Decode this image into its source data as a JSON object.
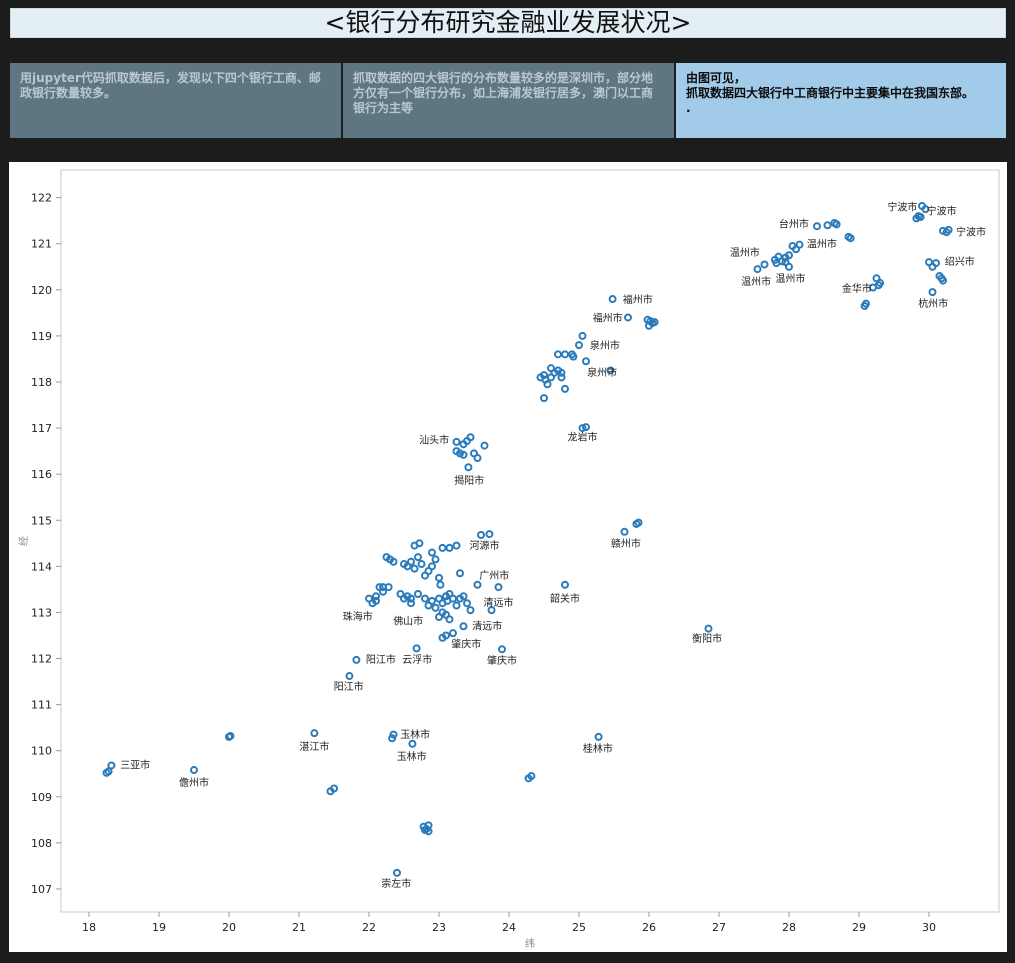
{
  "page": {
    "title": "<银行分布研究金融业发展状况>",
    "panels": [
      "用jupyter代码抓取数据后，发现以下四个银行工商、邮政银行数量较多。",
      "抓取数据的四大银行的分布数量较多的是深圳市，部分地方仅有一个银行分布，如上海浦发银行居多，澳门以工商银行为主等",
      "由图可见，\n抓取数据四大银行中工商银行中主要集中在我国东部。\n."
    ]
  },
  "colors": {
    "point": "#2b7bba",
    "background": "#1c1c1c",
    "panel_dark": "#5e7582",
    "panel_light": "#a2cbe9"
  },
  "chart_data": {
    "type": "scatter",
    "xlabel": "纬",
    "ylabel": "经",
    "xlim": [
      17.6,
      31.0
    ],
    "ylim": [
      106.5,
      122.6
    ],
    "xticks": [
      18,
      19,
      20,
      21,
      22,
      23,
      24,
      25,
      26,
      27,
      28,
      29,
      30
    ],
    "yticks": [
      107,
      108,
      109,
      110,
      111,
      112,
      113,
      114,
      115,
      116,
      117,
      118,
      119,
      120,
      121,
      122
    ],
    "grid": false,
    "series": [
      {
        "points": [
          [
            18.25,
            109.52
          ],
          [
            18.28,
            109.55
          ],
          [
            18.32,
            109.68
          ],
          [
            19.5,
            109.58
          ],
          [
            20.0,
            110.3
          ],
          [
            20.02,
            110.32
          ],
          [
            21.22,
            110.38
          ],
          [
            21.45,
            109.12
          ],
          [
            21.5,
            109.18
          ],
          [
            21.72,
            111.62
          ],
          [
            21.82,
            111.97
          ],
          [
            22.33,
            110.27
          ],
          [
            22.35,
            110.35
          ],
          [
            22.4,
            107.35
          ],
          [
            22.62,
            110.15
          ],
          [
            22.68,
            112.22
          ],
          [
            22.78,
            108.35
          ],
          [
            22.82,
            108.3
          ],
          [
            22.85,
            108.38
          ],
          [
            22.8,
            108.28
          ],
          [
            22.85,
            108.25
          ],
          [
            22.0,
            113.3
          ],
          [
            22.05,
            113.2
          ],
          [
            22.1,
            113.25
          ],
          [
            22.15,
            113.55
          ],
          [
            22.2,
            113.55
          ],
          [
            22.28,
            113.55
          ],
          [
            22.25,
            114.2
          ],
          [
            22.3,
            114.15
          ],
          [
            22.35,
            114.1
          ],
          [
            22.5,
            114.05
          ],
          [
            22.55,
            114.0
          ],
          [
            22.6,
            114.1
          ],
          [
            22.65,
            113.95
          ],
          [
            22.7,
            114.2
          ],
          [
            22.75,
            114.05
          ],
          [
            22.8,
            113.8
          ],
          [
            22.85,
            113.9
          ],
          [
            22.9,
            114.0
          ],
          [
            22.95,
            114.15
          ],
          [
            23.0,
            113.75
          ],
          [
            23.02,
            113.6
          ],
          [
            22.45,
            113.4
          ],
          [
            22.5,
            113.3
          ],
          [
            22.55,
            113.35
          ],
          [
            22.6,
            113.2
          ],
          [
            22.7,
            113.4
          ],
          [
            22.8,
            113.3
          ],
          [
            22.85,
            113.15
          ],
          [
            22.9,
            113.25
          ],
          [
            22.95,
            113.1
          ],
          [
            23.0,
            113.3
          ],
          [
            23.05,
            113.2
          ],
          [
            23.1,
            113.35
          ],
          [
            23.12,
            113.25
          ],
          [
            23.15,
            113.4
          ],
          [
            23.2,
            113.3
          ],
          [
            23.25,
            113.15
          ],
          [
            23.3,
            113.3
          ],
          [
            23.35,
            113.35
          ],
          [
            23.4,
            113.2
          ],
          [
            23.05,
            113.0
          ],
          [
            23.0,
            112.9
          ],
          [
            23.1,
            112.95
          ],
          [
            23.15,
            112.85
          ],
          [
            23.05,
            112.45
          ],
          [
            23.1,
            112.5
          ],
          [
            23.2,
            112.55
          ],
          [
            23.35,
            112.7
          ],
          [
            23.45,
            113.05
          ],
          [
            23.55,
            113.6
          ],
          [
            23.6,
            114.68
          ],
          [
            23.72,
            114.7
          ],
          [
            23.85,
            113.55
          ],
          [
            23.75,
            113.05
          ],
          [
            23.9,
            112.2
          ],
          [
            23.15,
            114.4
          ],
          [
            23.25,
            114.45
          ],
          [
            23.05,
            114.4
          ],
          [
            22.9,
            114.3
          ],
          [
            22.72,
            114.5
          ],
          [
            22.65,
            114.45
          ],
          [
            22.6,
            113.3
          ],
          [
            23.3,
            113.85
          ],
          [
            22.2,
            113.45
          ],
          [
            22.1,
            113.35
          ],
          [
            23.25,
            116.7
          ],
          [
            23.35,
            116.65
          ],
          [
            23.4,
            116.72
          ],
          [
            23.45,
            116.8
          ],
          [
            23.3,
            116.45
          ],
          [
            23.25,
            116.5
          ],
          [
            23.35,
            116.42
          ],
          [
            23.5,
            116.45
          ],
          [
            23.55,
            116.35
          ],
          [
            23.65,
            116.62
          ],
          [
            23.42,
            116.15
          ],
          [
            24.28,
            109.4
          ],
          [
            24.32,
            109.45
          ],
          [
            24.5,
            117.65
          ],
          [
            24.45,
            118.1
          ],
          [
            24.5,
            118.15
          ],
          [
            24.52,
            118.05
          ],
          [
            24.55,
            117.95
          ],
          [
            24.6,
            118.1
          ],
          [
            24.65,
            118.2
          ],
          [
            24.7,
            118.25
          ],
          [
            24.6,
            118.3
          ],
          [
            24.75,
            118.1
          ],
          [
            24.7,
            118.6
          ],
          [
            24.8,
            118.6
          ],
          [
            24.9,
            118.6
          ],
          [
            24.92,
            118.55
          ],
          [
            24.75,
            118.2
          ],
          [
            24.8,
            117.85
          ],
          [
            25.0,
            118.8
          ],
          [
            25.05,
            119.0
          ],
          [
            25.1,
            118.45
          ],
          [
            25.1,
            117.02
          ],
          [
            25.05,
            117.0
          ],
          [
            25.45,
            118.25
          ],
          [
            25.48,
            119.8
          ],
          [
            25.7,
            119.4
          ],
          [
            25.98,
            119.35
          ],
          [
            26.02,
            119.32
          ],
          [
            26.05,
            119.28
          ],
          [
            26.08,
            119.3
          ],
          [
            26.0,
            119.22
          ],
          [
            25.65,
            114.75
          ],
          [
            25.82,
            114.92
          ],
          [
            25.85,
            114.95
          ],
          [
            24.8,
            113.6
          ],
          [
            25.28,
            110.3
          ],
          [
            26.85,
            112.65
          ],
          [
            27.55,
            120.45
          ],
          [
            27.65,
            120.55
          ],
          [
            27.8,
            120.65
          ],
          [
            27.85,
            120.72
          ],
          [
            27.9,
            120.62
          ],
          [
            27.95,
            120.7
          ],
          [
            28.0,
            120.75
          ],
          [
            28.0,
            120.5
          ],
          [
            28.05,
            120.95
          ],
          [
            28.1,
            120.88
          ],
          [
            28.15,
            120.98
          ],
          [
            27.95,
            120.6
          ],
          [
            27.82,
            120.58
          ],
          [
            28.4,
            121.38
          ],
          [
            28.55,
            121.4
          ],
          [
            28.65,
            121.45
          ],
          [
            28.68,
            121.42
          ],
          [
            28.85,
            121.15
          ],
          [
            28.88,
            121.12
          ],
          [
            29.08,
            119.65
          ],
          [
            29.1,
            119.7
          ],
          [
            29.2,
            120.05
          ],
          [
            29.28,
            120.1
          ],
          [
            29.3,
            120.15
          ],
          [
            29.25,
            120.25
          ],
          [
            29.82,
            121.55
          ],
          [
            29.85,
            121.6
          ],
          [
            29.88,
            121.58
          ],
          [
            29.9,
            121.82
          ],
          [
            29.95,
            121.75
          ],
          [
            30.0,
            120.6
          ],
          [
            30.05,
            120.5
          ],
          [
            30.1,
            120.58
          ],
          [
            30.05,
            119.95
          ],
          [
            30.15,
            120.3
          ],
          [
            30.18,
            120.25
          ],
          [
            30.2,
            120.2
          ],
          [
            30.2,
            121.28
          ],
          [
            30.25,
            121.25
          ],
          [
            30.28,
            121.3
          ]
        ]
      }
    ],
    "annotations": [
      {
        "text": "宁波市",
        "x": 29.62,
        "y": 121.79
      },
      {
        "text": "宁波市",
        "x": 30.18,
        "y": 121.7
      },
      {
        "text": "宁波市",
        "x": 30.6,
        "y": 121.24
      },
      {
        "text": "台州市",
        "x": 28.07,
        "y": 121.42
      },
      {
        "text": "温州市",
        "x": 27.37,
        "y": 120.8
      },
      {
        "text": "温州市",
        "x": 28.47,
        "y": 120.98
      },
      {
        "text": "温州市",
        "x": 27.53,
        "y": 120.17
      },
      {
        "text": "温州市",
        "x": 28.02,
        "y": 120.24
      },
      {
        "text": "绍兴市",
        "x": 30.44,
        "y": 120.6
      },
      {
        "text": "金华市",
        "x": 28.97,
        "y": 120.02
      },
      {
        "text": "杭州市",
        "x": 30.06,
        "y": 119.69
      },
      {
        "text": "福州市",
        "x": 25.84,
        "y": 119.78
      },
      {
        "text": "福州市",
        "x": 25.41,
        "y": 119.38
      },
      {
        "text": "泉州市",
        "x": 25.37,
        "y": 118.78
      },
      {
        "text": "泉州市",
        "x": 25.33,
        "y": 118.2
      },
      {
        "text": "龙岩市",
        "x": 25.05,
        "y": 116.8
      },
      {
        "text": "汕头市",
        "x": 22.93,
        "y": 116.73
      },
      {
        "text": "揭阳市",
        "x": 23.43,
        "y": 115.85
      },
      {
        "text": "河源市",
        "x": 23.65,
        "y": 114.44
      },
      {
        "text": "赣州市",
        "x": 25.67,
        "y": 114.48
      },
      {
        "text": "广州市",
        "x": 23.79,
        "y": 113.79
      },
      {
        "text": "韶关市",
        "x": 24.8,
        "y": 113.29
      },
      {
        "text": "清远市",
        "x": 23.85,
        "y": 113.2
      },
      {
        "text": "清远市",
        "x": 23.69,
        "y": 112.7
      },
      {
        "text": "珠海市",
        "x": 21.84,
        "y": 112.9
      },
      {
        "text": "佛山市",
        "x": 22.56,
        "y": 112.8
      },
      {
        "text": "肇庆市",
        "x": 23.39,
        "y": 112.3
      },
      {
        "text": "肇庆市",
        "x": 23.9,
        "y": 111.95
      },
      {
        "text": "衡阳市",
        "x": 26.83,
        "y": 112.42
      },
      {
        "text": "阳江市",
        "x": 22.17,
        "y": 111.97
      },
      {
        "text": "云浮市",
        "x": 22.69,
        "y": 111.97
      },
      {
        "text": "阳江市",
        "x": 21.71,
        "y": 111.38
      },
      {
        "text": "玉林市",
        "x": 22.66,
        "y": 110.34
      },
      {
        "text": "玉林市",
        "x": 22.61,
        "y": 109.86
      },
      {
        "text": "湛江市",
        "x": 21.22,
        "y": 110.08
      },
      {
        "text": "桂林市",
        "x": 25.27,
        "y": 110.04
      },
      {
        "text": "三亚市",
        "x": 18.66,
        "y": 109.68
      },
      {
        "text": "儋州市",
        "x": 19.5,
        "y": 109.3
      },
      {
        "text": "崇左市",
        "x": 22.39,
        "y": 107.11
      }
    ]
  }
}
